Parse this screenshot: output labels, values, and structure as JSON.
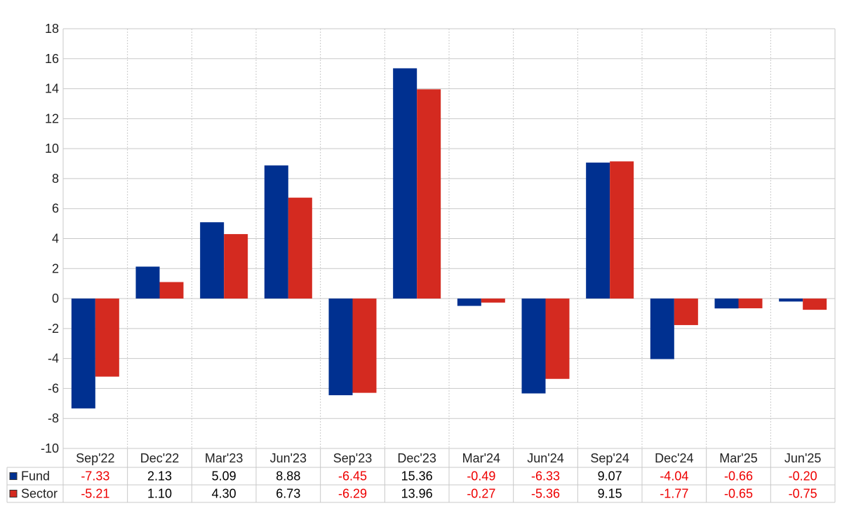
{
  "chart_data": {
    "type": "bar",
    "categories": [
      "Sep'22",
      "Dec'22",
      "Mar'23",
      "Jun'23",
      "Sep'23",
      "Dec'23",
      "Mar'24",
      "Jun'24",
      "Sep'24",
      "Dec'24",
      "Mar'25",
      "Jun'25"
    ],
    "series": [
      {
        "name": "Fund",
        "color": "#003090",
        "values": [
          -7.33,
          2.13,
          5.09,
          8.88,
          -6.45,
          15.36,
          -0.49,
          -6.33,
          9.07,
          -4.04,
          -0.66,
          -0.2
        ],
        "labels": [
          "-7.33",
          "2.13",
          "5.09",
          "8.88",
          "-6.45",
          "15.36",
          "-0.49",
          "-6.33",
          "9.07",
          "-4.04",
          "-0.66",
          "-0.20"
        ]
      },
      {
        "name": "Sector",
        "color": "#d42a20",
        "values": [
          -5.21,
          1.1,
          4.3,
          6.73,
          -6.29,
          13.96,
          -0.27,
          -5.36,
          9.15,
          -1.77,
          -0.65,
          -0.75
        ],
        "labels": [
          "-5.21",
          "1.10",
          "4.30",
          "6.73",
          "-6.29",
          "13.96",
          "-0.27",
          "-5.36",
          "9.15",
          "-1.77",
          "-0.65",
          "-0.75"
        ]
      }
    ],
    "y_ticks": [
      "-10",
      "-8",
      "-6",
      "-4",
      "-2",
      "0",
      "2",
      "4",
      "6",
      "8",
      "10",
      "12",
      "14",
      "16",
      "18"
    ],
    "ylim": [
      -10,
      18
    ],
    "grid": true,
    "legend": "bottom-left table",
    "colors": {
      "negative_text": "#ee0000",
      "positive_text": "#000000",
      "grid": "#c8c8c8"
    }
  }
}
